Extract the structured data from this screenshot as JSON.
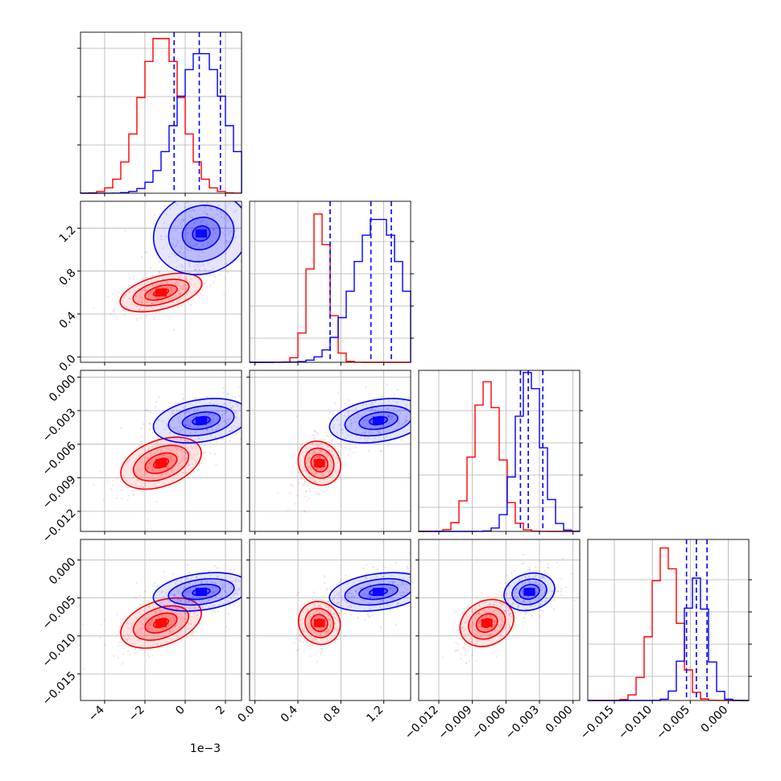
{
  "colors": {
    "red": "#ff0000",
    "blue": "#0000ff",
    "grid": "#b0b0b0"
  },
  "chart_data": {
    "type": "corner",
    "grid": true,
    "params": [
      {
        "range": [
          -5.2,
          2.8
        ],
        "ticks": [
          -4,
          -2,
          0,
          2
        ],
        "tick_labels": [
          "−4",
          "−2",
          "0",
          "2"
        ],
        "offset_label": "1e−3"
      },
      {
        "range": [
          -0.05,
          1.45
        ],
        "ticks": [
          0.0,
          0.4,
          0.8,
          1.2
        ],
        "tick_labels": [
          "0.0",
          "0.4",
          "0.8",
          "1.2"
        ],
        "offset_label": ""
      },
      {
        "range": [
          -0.0138,
          0.0006
        ],
        "ticks": [
          -0.012,
          -0.009,
          -0.006,
          -0.003,
          0.0
        ],
        "tick_labels": [
          "−0.012",
          "−0.009",
          "−0.006",
          "−0.003",
          "0.000"
        ],
        "offset_label": ""
      },
      {
        "range": [
          -0.0185,
          0.0027
        ],
        "ticks": [
          -0.015,
          -0.01,
          -0.005,
          0.0
        ],
        "tick_labels": [
          "−0.015",
          "−0.010",
          "−0.005",
          "0.000"
        ],
        "offset_label": ""
      }
    ],
    "series": [
      {
        "color": "#ff0000",
        "means": [
          -1.2,
          0.6,
          -0.0077,
          -0.0083
        ],
        "sds": [
          1.0,
          0.09,
          0.0012,
          0.0017
        ],
        "hist_peaks": [
          0.98,
          0.93,
          0.93,
          0.95
        ],
        "quantiles": [
          [],
          [],
          [],
          []
        ]
      },
      {
        "color": "#0000ff",
        "means": [
          0.8,
          1.15,
          -0.0039,
          -0.0042
        ],
        "sds": [
          1.15,
          0.22,
          0.0011,
          0.0014
        ],
        "hist_peaks": [
          0.88,
          0.9,
          1.0,
          0.76
        ],
        "quantiles": [
          [
            -0.55,
            0.7,
            1.75
          ],
          [
            0.7,
            1.08,
            1.27
          ],
          [
            -0.0047,
            -0.004,
            -0.0027
          ],
          [
            -0.0055,
            -0.0042,
            -0.0028
          ]
        ]
      }
    ]
  }
}
